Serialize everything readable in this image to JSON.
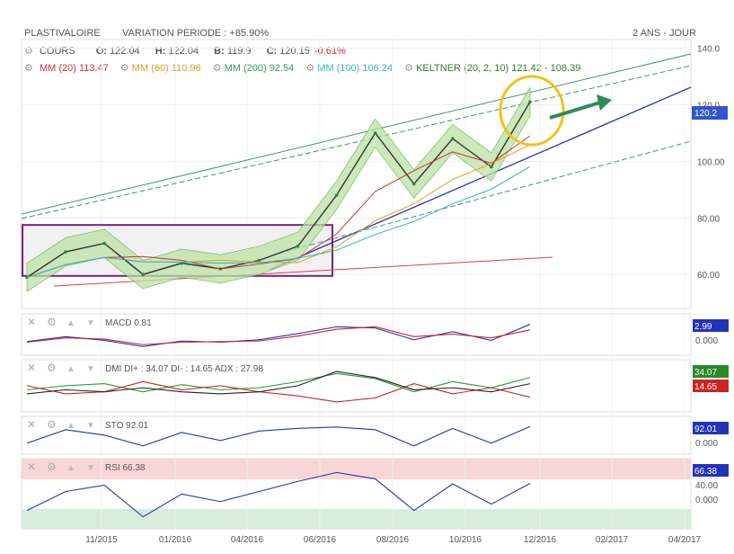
{
  "header": {
    "symbol": "PLASTIVALOIRE",
    "variation_label": "VARIATION PERIODE : +85.90%",
    "period": "2 ANS - JOUR"
  },
  "quote": {
    "series": "COURS",
    "open_key": "O:",
    "open": "122.04",
    "high_key": "H:",
    "high": "122.04",
    "low_key": "B:",
    "low": "119.9",
    "close_key": "C:",
    "close": "120.15",
    "change": "-0.61%"
  },
  "indicators": [
    {
      "label": "MM (20)",
      "value": "113.47",
      "color": "#cc3333"
    },
    {
      "label": "MM (60)",
      "value": "110.98",
      "color": "#e0a020"
    },
    {
      "label": "MM (200)",
      "value": "92.54",
      "color": "#339966"
    },
    {
      "label": "MM (100)",
      "value": "106.24",
      "color": "#33b5c8"
    },
    {
      "label": "KELTNER (20, 2, 10)",
      "value": "121.42 - 108.39",
      "color": "#2e7d32"
    }
  ],
  "chart_data": [
    {
      "type": "line",
      "title": "PLASTIVALOIRE",
      "x_ticks": [
        "11/2015",
        "01/2016",
        "04/2016",
        "06/2016",
        "08/2016",
        "10/2016",
        "12/2016",
        "02/2017",
        "04/2017"
      ],
      "y_ticks": [
        "140.0",
        "120.0",
        "100.00",
        "80.00",
        "60.00"
      ],
      "ylim": [
        48,
        143
      ],
      "last_price_tag": "120.2",
      "x": [
        "10/2015",
        "11/2015",
        "12/2015",
        "01/2016",
        "02/2016",
        "03/2016",
        "04/2016",
        "05/2016",
        "06/2016",
        "07/2016",
        "08/2016",
        "09/2016",
        "10/2016",
        "11/2016"
      ],
      "series": [
        {
          "values": [
            59,
            68,
            71,
            60,
            64,
            62,
            65,
            70,
            88,
            110,
            92,
            108,
            98,
            121
          ]
        }
      ]
    },
    {
      "type": "line",
      "label": "MACD",
      "value": "0.81",
      "tags": [
        "2.99",
        "0.000"
      ],
      "series": [
        {
          "values": [
            0.2,
            1.0,
            0.4,
            -0.6,
            0.3,
            0.1,
            0.5,
            1.5,
            2.6,
            2.4,
            0.5,
            1.8,
            0.4,
            2.99
          ]
        },
        {
          "values": [
            0.1,
            0.8,
            0.6,
            -0.3,
            0.1,
            0.2,
            0.3,
            1.1,
            2.2,
            2.6,
            1.0,
            1.4,
            0.8,
            2.1
          ]
        }
      ]
    },
    {
      "type": "line",
      "label": "DMI",
      "values_text": "DI+ : 34.07  DI- : 14.65  ADX : 27.98",
      "tags": [
        "34.07",
        "14.65"
      ],
      "series": [
        {
          "values": [
            22,
            26,
            28,
            20,
            27,
            22,
            24,
            30,
            38,
            33,
            20,
            30,
            24,
            34.07
          ]
        },
        {
          "values": [
            26,
            18,
            20,
            30,
            22,
            26,
            20,
            16,
            10,
            14,
            28,
            18,
            24,
            14.65
          ]
        },
        {
          "values": [
            18,
            22,
            20,
            24,
            20,
            18,
            20,
            26,
            40,
            34,
            22,
            24,
            20,
            27.98
          ]
        }
      ]
    },
    {
      "type": "line",
      "label": "STO",
      "value": "92.01",
      "tags": [
        "92.01",
        "0.000"
      ],
      "series": [
        {
          "values": [
            30,
            80,
            60,
            20,
            70,
            40,
            75,
            85,
            90,
            80,
            20,
            85,
            30,
            92.01
          ]
        }
      ]
    },
    {
      "type": "line",
      "label": "RSI",
      "value": "66.38",
      "tags": [
        "66.38",
        "40.00",
        "0.000"
      ],
      "series": [
        {
          "values": [
            45,
            60,
            65,
            40,
            58,
            52,
            60,
            68,
            75,
            70,
            45,
            66,
            50,
            66.38
          ]
        }
      ]
    }
  ]
}
